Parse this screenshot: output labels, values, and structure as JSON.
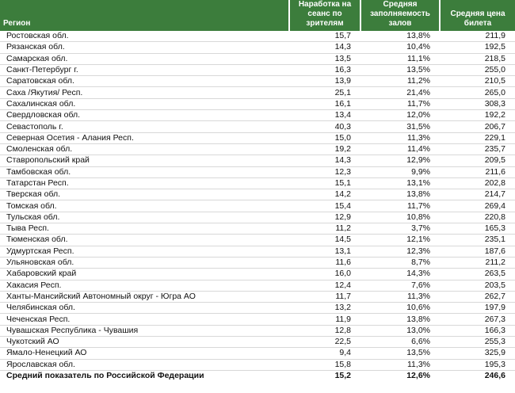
{
  "table": {
    "header": [
      "Регион",
      "Наработка на сеанс по зрителям",
      "Средняя заполняемость залов",
      "Средняя цена билета"
    ],
    "rows": [
      [
        "Ростовская обл.",
        "15,7",
        "13,8%",
        "211,9"
      ],
      [
        "Рязанская обл.",
        "14,3",
        "10,4%",
        "192,5"
      ],
      [
        "Самарская обл.",
        "13,5",
        "11,1%",
        "218,5"
      ],
      [
        "Санкт-Петербург г.",
        "16,3",
        "13,5%",
        "255,0"
      ],
      [
        "Саратовская обл.",
        "13,9",
        "11,2%",
        "210,5"
      ],
      [
        "Саха /Якутия/ Респ.",
        "25,1",
        "21,4%",
        "265,0"
      ],
      [
        "Сахалинская обл.",
        "16,1",
        "11,7%",
        "308,3"
      ],
      [
        "Свердловская обл.",
        "13,4",
        "12,0%",
        "192,2"
      ],
      [
        "Севастополь г.",
        "40,3",
        "31,5%",
        "206,7"
      ],
      [
        "Северная Осетия - Алания Респ.",
        "15,0",
        "11,3%",
        "229,1"
      ],
      [
        "Смоленская обл.",
        "19,2",
        "11,4%",
        "235,7"
      ],
      [
        "Ставропольский край",
        "14,3",
        "12,9%",
        "209,5"
      ],
      [
        "Тамбовская обл.",
        "12,3",
        "9,9%",
        "211,6"
      ],
      [
        "Татарстан Респ.",
        "15,1",
        "13,1%",
        "202,8"
      ],
      [
        "Тверская обл.",
        "14,2",
        "13,8%",
        "214,7"
      ],
      [
        "Томская обл.",
        "15,4",
        "11,7%",
        "269,4"
      ],
      [
        "Тульская обл.",
        "12,9",
        "10,8%",
        "220,8"
      ],
      [
        "Тыва Респ.",
        "11,2",
        "3,7%",
        "165,3"
      ],
      [
        "Тюменская обл.",
        "14,5",
        "12,1%",
        "235,1"
      ],
      [
        "Удмуртская Респ.",
        "13,1",
        "12,3%",
        "187,6"
      ],
      [
        "Ульяновская обл.",
        "11,6",
        "8,7%",
        "211,2"
      ],
      [
        "Хабаровский край",
        "16,0",
        "14,3%",
        "263,5"
      ],
      [
        "Хакасия Респ.",
        "12,4",
        "7,6%",
        "203,5"
      ],
      [
        "Ханты-Мансийский Автономный округ - Югра АО",
        "11,7",
        "11,3%",
        "262,7"
      ],
      [
        "Челябинская обл.",
        "13,2",
        "10,6%",
        "197,9"
      ],
      [
        "Чеченская Респ.",
        "11,9",
        "13,8%",
        "267,3"
      ],
      [
        "Чувашская Республика - Чувашия",
        "12,8",
        "13,0%",
        "166,3"
      ],
      [
        "Чукотский АО",
        "22,5",
        "6,6%",
        "255,3"
      ],
      [
        "Ямало-Ненецкий АО",
        "9,4",
        "13,5%",
        "325,9"
      ],
      [
        "Ярославская обл.",
        "15,8",
        "11,3%",
        "195,3"
      ]
    ],
    "total": [
      "Средний показатель по Российской Федерации",
      "15,2",
      "12,6%",
      "246,6"
    ]
  }
}
